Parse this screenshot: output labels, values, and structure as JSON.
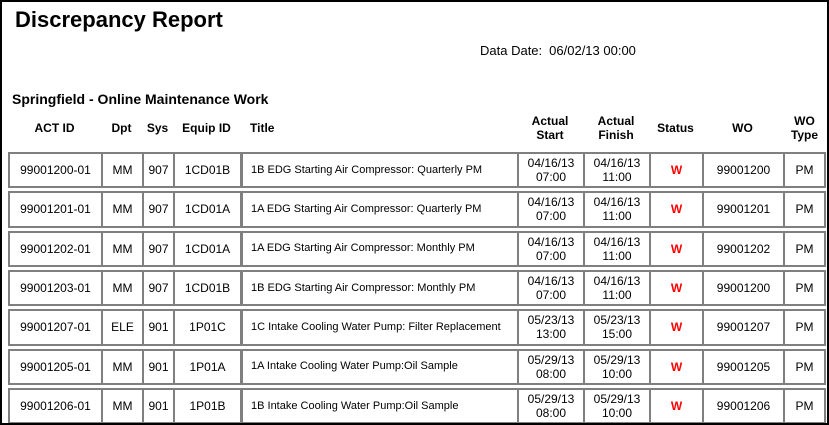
{
  "report": {
    "title": "Discrepancy Report",
    "data_date_label": "Data Date:",
    "data_date_value": "06/02/13 00:00",
    "section_title": "Springfield - Online Maintenance Work"
  },
  "colors": {
    "page_border": "#000000",
    "row_border": "#7f7f7f",
    "status_w_red": "#ff0000"
  },
  "table": {
    "columns": [
      {
        "key": "act_id",
        "label": "ACT ID"
      },
      {
        "key": "dpt",
        "label": "Dpt"
      },
      {
        "key": "sys",
        "label": "Sys"
      },
      {
        "key": "equip_id",
        "label": "Equip ID"
      },
      {
        "key": "title",
        "label": "Title"
      },
      {
        "key": "actual_start",
        "label": "Actual Start"
      },
      {
        "key": "actual_finish",
        "label": "Actual Finish"
      },
      {
        "key": "status",
        "label": "Status"
      },
      {
        "key": "wo",
        "label": "WO"
      },
      {
        "key": "wo_type",
        "label": "WO Type"
      }
    ],
    "rows": [
      {
        "act_id": "99001200-01",
        "dpt": "MM",
        "sys": "907",
        "equip_id": "1CD01B",
        "title": "1B EDG Starting Air Compressor: Quarterly PM",
        "actual_start": "04/16/13 07:00",
        "actual_finish": "04/16/13 11:00",
        "status": "W",
        "wo": "99001200",
        "wo_type": "PM"
      },
      {
        "act_id": "99001201-01",
        "dpt": "MM",
        "sys": "907",
        "equip_id": "1CD01A",
        "title": "1A EDG Starting Air Compressor: Quarterly PM",
        "actual_start": "04/16/13 07:00",
        "actual_finish": "04/16/13 11:00",
        "status": "W",
        "wo": "99001201",
        "wo_type": "PM"
      },
      {
        "act_id": "99001202-01",
        "dpt": "MM",
        "sys": "907",
        "equip_id": "1CD01A",
        "title": "1A EDG Starting Air Compressor: Monthly PM",
        "actual_start": "04/16/13 07:00",
        "actual_finish": "04/16/13 11:00",
        "status": "W",
        "wo": "99001202",
        "wo_type": "PM"
      },
      {
        "act_id": "99001203-01",
        "dpt": "MM",
        "sys": "907",
        "equip_id": "1CD01B",
        "title": "1B EDG Starting Air Compressor: Monthly PM",
        "actual_start": "04/16/13 07:00",
        "actual_finish": "04/16/13 11:00",
        "status": "W",
        "wo": "99001200",
        "wo_type": "PM"
      },
      {
        "act_id": "99001207-01",
        "dpt": "ELE",
        "sys": "901",
        "equip_id": "1P01C",
        "title": "1C Intake Cooling Water Pump: Filter Replacement",
        "actual_start": "05/23/13 13:00",
        "actual_finish": "05/23/13 15:00",
        "status": "W",
        "wo": "99001207",
        "wo_type": "PM"
      },
      {
        "act_id": "99001205-01",
        "dpt": "MM",
        "sys": "901",
        "equip_id": "1P01A",
        "title": "1A Intake Cooling Water Pump:Oil Sample",
        "actual_start": "05/29/13 08:00",
        "actual_finish": "05/29/13 10:00",
        "status": "W",
        "wo": "99001205",
        "wo_type": "PM"
      },
      {
        "act_id": "99001206-01",
        "dpt": "MM",
        "sys": "901",
        "equip_id": "1P01B",
        "title": "1B Intake Cooling Water Pump:Oil Sample",
        "actual_start": "05/29/13 08:00",
        "actual_finish": "05/29/13 10:00",
        "status": "W",
        "wo": "99001206",
        "wo_type": "PM"
      }
    ]
  }
}
